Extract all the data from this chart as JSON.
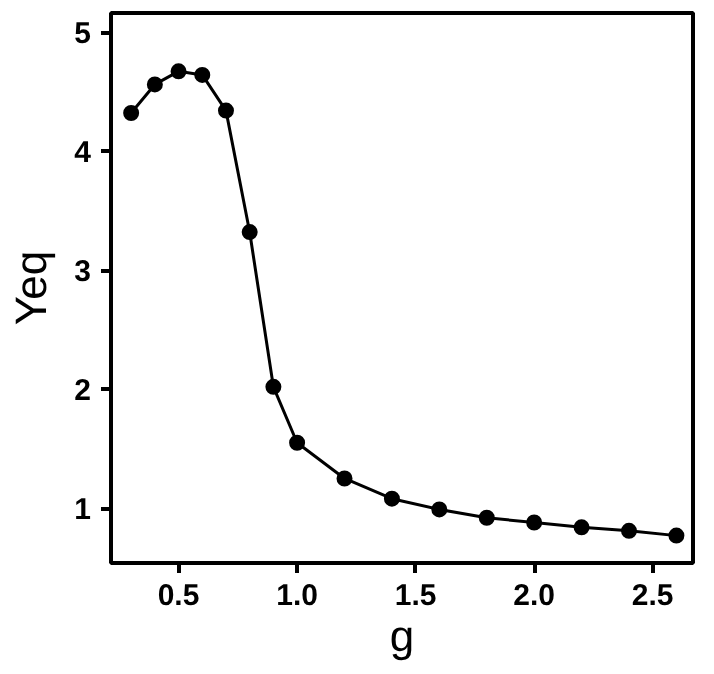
{
  "chart_data": {
    "type": "line",
    "xlabel": "g",
    "ylabel": "Yeq",
    "x": [
      0.3,
      0.4,
      0.5,
      0.6,
      0.7,
      0.8,
      0.9,
      1.0,
      1.2,
      1.4,
      1.6,
      1.8,
      2.0,
      2.2,
      2.4,
      2.6
    ],
    "series": [
      {
        "color": "#000000",
        "values": [
          4.32,
          4.56,
          4.67,
          4.64,
          4.34,
          3.32,
          2.02,
          1.55,
          1.25,
          1.08,
          0.99,
          0.92,
          0.88,
          0.84,
          0.81,
          0.77
        ]
      }
    ],
    "xlim": [
      0.215,
      2.67
    ],
    "ylim": [
      0.54,
      5.16
    ],
    "xticks": [
      0.5,
      {
        "value": 1,
        "label": "1.0"
      },
      1.5,
      {
        "value": 2,
        "label": "2.0"
      },
      2.5
    ],
    "yticks": [
      1,
      2,
      3,
      4,
      5
    ],
    "marker": "circle",
    "line_style": "solid",
    "grid": false
  }
}
